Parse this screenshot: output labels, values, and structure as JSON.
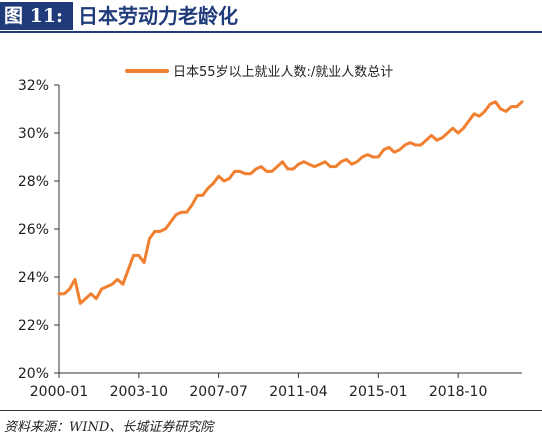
{
  "header": {
    "figure_tag": "图 11:",
    "title": "日本劳动力老龄化"
  },
  "source": "资料来源：WIND、长城证券研究院",
  "colors": {
    "header": "#1f3b7a",
    "series": "#f07f30",
    "axis": "#333333"
  },
  "chart_data": {
    "type": "line",
    "title": "",
    "xlabel": "",
    "ylabel": "",
    "legend_position": "top-center",
    "grid": false,
    "x_ticks": [
      "2000-01",
      "2003-10",
      "2007-07",
      "2011-04",
      "2015-01",
      "2018-10"
    ],
    "y_ticks": [
      "20%",
      "22%",
      "24%",
      "26%",
      "28%",
      "30%",
      "32%"
    ],
    "ylim": [
      20,
      32
    ],
    "xlim": [
      "2000-01",
      "2021-10"
    ],
    "series": [
      {
        "name": "日本55岁以上就业人数:/就业人数总计",
        "color": "#f07f30",
        "points": [
          [
            "2000-01",
            23.3
          ],
          [
            "2000-04",
            23.3
          ],
          [
            "2000-07",
            23.5
          ],
          [
            "2000-10",
            23.9
          ],
          [
            "2001-01",
            22.9
          ],
          [
            "2001-04",
            23.1
          ],
          [
            "2001-07",
            23.3
          ],
          [
            "2001-10",
            23.1
          ],
          [
            "2002-01",
            23.5
          ],
          [
            "2002-04",
            23.6
          ],
          [
            "2002-07",
            23.7
          ],
          [
            "2002-10",
            23.9
          ],
          [
            "2003-01",
            23.7
          ],
          [
            "2003-04",
            24.3
          ],
          [
            "2003-07",
            24.9
          ],
          [
            "2003-10",
            24.9
          ],
          [
            "2004-01",
            24.6
          ],
          [
            "2004-04",
            25.6
          ],
          [
            "2004-07",
            25.9
          ],
          [
            "2004-10",
            25.9
          ],
          [
            "2005-01",
            26.0
          ],
          [
            "2005-04",
            26.3
          ],
          [
            "2005-07",
            26.6
          ],
          [
            "2005-10",
            26.7
          ],
          [
            "2006-01",
            26.7
          ],
          [
            "2006-04",
            27.0
          ],
          [
            "2006-07",
            27.4
          ],
          [
            "2006-10",
            27.4
          ],
          [
            "2007-01",
            27.7
          ],
          [
            "2007-04",
            27.9
          ],
          [
            "2007-07",
            28.2
          ],
          [
            "2007-10",
            28.0
          ],
          [
            "2008-01",
            28.1
          ],
          [
            "2008-04",
            28.4
          ],
          [
            "2008-07",
            28.4
          ],
          [
            "2008-10",
            28.3
          ],
          [
            "2009-01",
            28.3
          ],
          [
            "2009-04",
            28.5
          ],
          [
            "2009-07",
            28.6
          ],
          [
            "2009-10",
            28.4
          ],
          [
            "2010-01",
            28.4
          ],
          [
            "2010-04",
            28.6
          ],
          [
            "2010-07",
            28.8
          ],
          [
            "2010-10",
            28.5
          ],
          [
            "2011-01",
            28.5
          ],
          [
            "2011-04",
            28.7
          ],
          [
            "2011-07",
            28.8
          ],
          [
            "2011-10",
            28.7
          ],
          [
            "2012-01",
            28.6
          ],
          [
            "2012-04",
            28.7
          ],
          [
            "2012-07",
            28.8
          ],
          [
            "2012-10",
            28.6
          ],
          [
            "2013-01",
            28.6
          ],
          [
            "2013-04",
            28.8
          ],
          [
            "2013-07",
            28.9
          ],
          [
            "2013-10",
            28.7
          ],
          [
            "2014-01",
            28.8
          ],
          [
            "2014-04",
            29.0
          ],
          [
            "2014-07",
            29.1
          ],
          [
            "2014-10",
            29.0
          ],
          [
            "2015-01",
            29.0
          ],
          [
            "2015-04",
            29.3
          ],
          [
            "2015-07",
            29.4
          ],
          [
            "2015-10",
            29.2
          ],
          [
            "2016-01",
            29.3
          ],
          [
            "2016-04",
            29.5
          ],
          [
            "2016-07",
            29.6
          ],
          [
            "2016-10",
            29.5
          ],
          [
            "2017-01",
            29.5
          ],
          [
            "2017-04",
            29.7
          ],
          [
            "2017-07",
            29.9
          ],
          [
            "2017-10",
            29.7
          ],
          [
            "2018-01",
            29.8
          ],
          [
            "2018-04",
            30.0
          ],
          [
            "2018-07",
            30.2
          ],
          [
            "2018-10",
            30.0
          ],
          [
            "2019-01",
            30.2
          ],
          [
            "2019-04",
            30.5
          ],
          [
            "2019-07",
            30.8
          ],
          [
            "2019-10",
            30.7
          ],
          [
            "2020-01",
            30.9
          ],
          [
            "2020-04",
            31.2
          ],
          [
            "2020-07",
            31.3
          ],
          [
            "2020-10",
            31.0
          ],
          [
            "2021-01",
            30.9
          ],
          [
            "2021-04",
            31.1
          ],
          [
            "2021-07",
            31.1
          ],
          [
            "2021-10",
            31.3
          ]
        ]
      }
    ]
  }
}
